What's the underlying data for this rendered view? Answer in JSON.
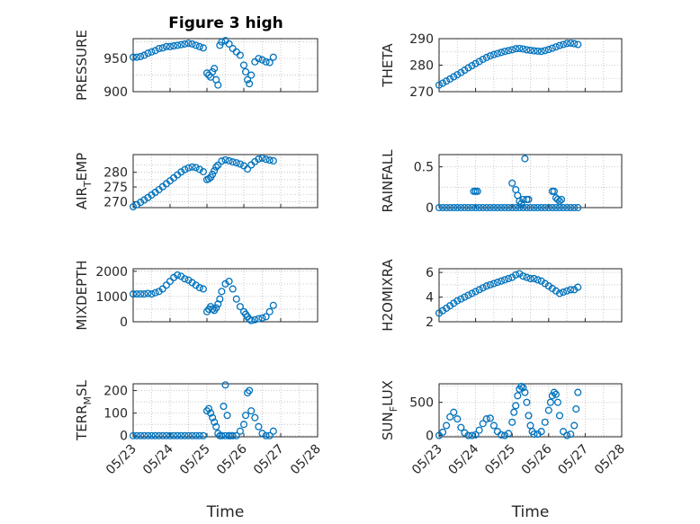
{
  "figure_title": "Figure 3 high",
  "colors": {
    "series": "#0072bd",
    "axis": "#262626",
    "grid": "#bdbdbd",
    "background": "#ffffff"
  },
  "chart_data": [
    {
      "type": "scatter",
      "ylabel": "PRESSURE",
      "ylabel_sub": "",
      "ylabel_tail": "",
      "xlabel": "",
      "title": "Figure 3 high",
      "xlim": [
        "05/23",
        "05/25"
      ],
      "ylim": [
        900,
        980
      ],
      "yticks": [
        "900",
        "950"
      ],
      "ytick_values": [
        900,
        950
      ],
      "grid": true,
      "x": [
        0.0,
        0.1,
        0.2,
        0.3,
        0.4,
        0.5,
        0.6,
        0.7,
        0.8,
        0.9,
        1.0,
        1.1,
        1.2,
        1.3,
        1.4,
        1.5,
        1.6,
        1.7,
        1.8,
        1.9,
        2.0,
        2.05,
        2.1,
        2.15,
        2.2,
        2.25,
        2.3,
        2.35,
        2.4,
        2.5,
        2.6,
        2.7,
        2.8,
        2.9,
        3.0,
        3.05,
        3.1,
        3.15,
        3.2,
        3.3,
        3.4,
        3.5,
        3.6,
        3.7,
        3.8
      ],
      "y": [
        952,
        952,
        953,
        955,
        958,
        960,
        962,
        965,
        966,
        968,
        968,
        969,
        970,
        971,
        972,
        973,
        972,
        970,
        968,
        966,
        928,
        925,
        922,
        930,
        935,
        918,
        910,
        970,
        975,
        977,
        972,
        965,
        960,
        955,
        940,
        930,
        918,
        912,
        925,
        945,
        950,
        948,
        945,
        944,
        952
      ]
    },
    {
      "type": "scatter",
      "ylabel": "THETA",
      "ylabel_sub": "",
      "ylabel_tail": "",
      "xlabel": "",
      "title": "",
      "xlim": [
        "05/23",
        "05/25"
      ],
      "ylim": [
        270,
        290
      ],
      "yticks": [
        "270",
        "280",
        "290"
      ],
      "ytick_values": [
        270,
        280,
        290
      ],
      "grid": true,
      "x": [
        0.0,
        0.1,
        0.2,
        0.3,
        0.4,
        0.5,
        0.6,
        0.7,
        0.8,
        0.9,
        1.0,
        1.1,
        1.2,
        1.3,
        1.4,
        1.5,
        1.6,
        1.7,
        1.8,
        1.9,
        2.0,
        2.1,
        2.2,
        2.3,
        2.4,
        2.5,
        2.6,
        2.7,
        2.8,
        2.9,
        3.0,
        3.1,
        3.2,
        3.3,
        3.4,
        3.5,
        3.6,
        3.7,
        3.8
      ],
      "y": [
        272.5,
        273.2,
        274,
        274.8,
        275.6,
        276.4,
        277.2,
        278.1,
        279,
        279.8,
        280.6,
        281.4,
        282.2,
        282.9,
        283.5,
        284,
        284.4,
        284.8,
        285.2,
        285.5,
        285.8,
        286.2,
        286.3,
        286.1,
        285.8,
        285.6,
        285.4,
        285.3,
        285.2,
        285.5,
        285.9,
        286.4,
        286.9,
        287.4,
        287.8,
        288.2,
        288.3,
        288.1,
        287.8
      ]
    },
    {
      "type": "scatter",
      "ylabel": "AIR",
      "ylabel_sub": "T",
      "ylabel_tail": "EMP",
      "xlabel": "",
      "title": "",
      "xlim": [
        "05/23",
        "05/25"
      ],
      "ylim": [
        268,
        286
      ],
      "yticks": [
        "270",
        "275",
        "280"
      ],
      "ytick_values": [
        270,
        275,
        280
      ],
      "grid": true,
      "x": [
        0.0,
        0.1,
        0.2,
        0.3,
        0.4,
        0.5,
        0.6,
        0.7,
        0.8,
        0.9,
        1.0,
        1.1,
        1.2,
        1.3,
        1.4,
        1.5,
        1.6,
        1.7,
        1.8,
        1.9,
        2.0,
        2.05,
        2.1,
        2.15,
        2.2,
        2.25,
        2.3,
        2.4,
        2.5,
        2.6,
        2.7,
        2.8,
        2.9,
        3.0,
        3.1,
        3.2,
        3.3,
        3.4,
        3.5,
        3.6,
        3.7,
        3.8
      ],
      "y": [
        268.3,
        269,
        269.8,
        270.6,
        271.4,
        272.3,
        273.2,
        274.1,
        275.1,
        276.1,
        277.1,
        278.1,
        279.1,
        280.1,
        280.9,
        281.5,
        281.8,
        281.6,
        281,
        280.2,
        277.5,
        277.8,
        278.3,
        279.3,
        280.5,
        281.8,
        282.4,
        283.8,
        284.2,
        283.9,
        283.5,
        283.2,
        282.8,
        282.2,
        281.1,
        282.5,
        283.6,
        284.5,
        284.8,
        284.4,
        284.1,
        283.9
      ]
    },
    {
      "type": "scatter",
      "ylabel": "RAINFALL",
      "ylabel_sub": "",
      "ylabel_tail": "",
      "xlabel": "",
      "title": "",
      "xlim": [
        "05/23",
        "05/25"
      ],
      "ylim": [
        0,
        0.65
      ],
      "yticks": [
        "0",
        "0.5"
      ],
      "ytick_values": [
        0,
        0.5
      ],
      "grid": true,
      "x": [
        0.0,
        0.1,
        0.2,
        0.3,
        0.4,
        0.5,
        0.6,
        0.7,
        0.8,
        0.9,
        1.0,
        1.1,
        1.2,
        1.3,
        1.4,
        1.5,
        1.6,
        1.7,
        1.8,
        1.9,
        2.0,
        2.1,
        2.2,
        2.3,
        2.4,
        2.5,
        2.6,
        2.7,
        2.8,
        2.9,
        3.0,
        3.1,
        3.2,
        3.3,
        3.4,
        3.5,
        3.6,
        3.7,
        3.8,
        0.95,
        1.0,
        1.05,
        2.0,
        2.1,
        2.15,
        2.2,
        2.25,
        2.3,
        2.35,
        2.4,
        2.45,
        3.1,
        3.15,
        3.2,
        3.25,
        3.3,
        3.35
      ],
      "y": [
        0,
        0,
        0,
        0,
        0,
        0,
        0,
        0,
        0,
        0,
        0,
        0,
        0,
        0,
        0,
        0,
        0,
        0,
        0,
        0,
        0,
        0,
        0,
        0,
        0,
        0,
        0,
        0,
        0,
        0,
        0,
        0,
        0,
        0,
        0,
        0,
        0,
        0,
        0,
        0.2,
        0.2,
        0.2,
        0.3,
        0.22,
        0.15,
        0.08,
        0.05,
        0.1,
        0.6,
        0.1,
        0.1,
        0.2,
        0.2,
        0.12,
        0.1,
        0.08,
        0.1
      ]
    },
    {
      "type": "scatter",
      "ylabel": "MIXDEPTH",
      "ylabel_sub": "",
      "ylabel_tail": "",
      "xlabel": "",
      "title": "",
      "xlim": [
        "05/23",
        "05/25"
      ],
      "ylim": [
        0,
        2100
      ],
      "yticks": [
        "0",
        "1000",
        "2000"
      ],
      "ytick_values": [
        0,
        1000,
        2000
      ],
      "grid": true,
      "x": [
        0.0,
        0.1,
        0.2,
        0.3,
        0.4,
        0.5,
        0.6,
        0.7,
        0.8,
        0.9,
        1.0,
        1.1,
        1.2,
        1.3,
        1.4,
        1.5,
        1.6,
        1.7,
        1.8,
        1.9,
        2.0,
        2.05,
        2.1,
        2.15,
        2.2,
        2.25,
        2.3,
        2.35,
        2.4,
        2.5,
        2.6,
        2.7,
        2.8,
        2.9,
        3.0,
        3.05,
        3.1,
        3.15,
        3.2,
        3.3,
        3.4,
        3.5,
        3.6,
        3.7,
        3.8
      ],
      "y": [
        1100,
        1100,
        1100,
        1100,
        1120,
        1100,
        1150,
        1200,
        1300,
        1450,
        1600,
        1750,
        1850,
        1800,
        1700,
        1650,
        1550,
        1450,
        1350,
        1300,
        400,
        500,
        600,
        500,
        450,
        550,
        700,
        900,
        1200,
        1500,
        1600,
        1300,
        900,
        600,
        400,
        300,
        200,
        100,
        50,
        80,
        120,
        150,
        200,
        400,
        650
      ]
    },
    {
      "type": "scatter",
      "ylabel": "H2OMIXRA",
      "ylabel_sub": "",
      "ylabel_tail": "",
      "xlabel": "",
      "title": "",
      "xlim": [
        "05/23",
        "05/25"
      ],
      "ylim": [
        2,
        6.3
      ],
      "yticks": [
        "2",
        "4",
        "6"
      ],
      "ytick_values": [
        2,
        4,
        6
      ],
      "grid": true,
      "x": [
        0.0,
        0.1,
        0.2,
        0.3,
        0.4,
        0.5,
        0.6,
        0.7,
        0.8,
        0.9,
        1.0,
        1.1,
        1.2,
        1.3,
        1.4,
        1.5,
        1.6,
        1.7,
        1.8,
        1.9,
        2.0,
        2.1,
        2.2,
        2.3,
        2.4,
        2.5,
        2.6,
        2.7,
        2.8,
        2.9,
        3.0,
        3.1,
        3.2,
        3.3,
        3.4,
        3.5,
        3.6,
        3.7,
        3.8
      ],
      "y": [
        2.7,
        2.9,
        3.1,
        3.3,
        3.5,
        3.7,
        3.85,
        4.0,
        4.15,
        4.3,
        4.45,
        4.6,
        4.75,
        4.9,
        5.0,
        5.1,
        5.2,
        5.3,
        5.4,
        5.5,
        5.6,
        5.8,
        5.9,
        5.7,
        5.6,
        5.5,
        5.5,
        5.4,
        5.3,
        5.1,
        4.9,
        4.7,
        4.5,
        4.3,
        4.4,
        4.5,
        4.6,
        4.6,
        4.8
      ]
    },
    {
      "type": "scatter",
      "ylabel": "TERR",
      "ylabel_sub": "M",
      "ylabel_tail": "SL",
      "xlabel": "Time",
      "title": "",
      "xlim": [
        "05/23",
        "05/28"
      ],
      "ylim": [
        -5,
        230
      ],
      "yticks": [
        "0",
        "100",
        "200"
      ],
      "ytick_values": [
        0,
        100,
        200
      ],
      "xticks": [
        "05/23",
        "05/24",
        "05/25",
        "05/26",
        "05/27",
        "05/28"
      ],
      "grid": true,
      "x": [
        0.0,
        0.1,
        0.2,
        0.3,
        0.4,
        0.5,
        0.6,
        0.7,
        0.8,
        0.9,
        1.0,
        1.1,
        1.2,
        1.3,
        1.4,
        1.5,
        1.6,
        1.7,
        1.8,
        1.9,
        2.0,
        2.05,
        2.1,
        2.15,
        2.2,
        2.25,
        2.3,
        2.35,
        2.4,
        2.5,
        2.6,
        2.7,
        2.8,
        2.9,
        3.0,
        3.05,
        3.1,
        3.15,
        3.2,
        3.3,
        3.4,
        3.5,
        3.6,
        3.7,
        3.8,
        2.45,
        2.5,
        2.55,
        2.6,
        2.65
      ],
      "y": [
        0,
        0,
        0,
        0,
        0,
        0,
        0,
        0,
        0,
        0,
        0,
        0,
        0,
        0,
        0,
        0,
        0,
        0,
        0,
        0,
        110,
        120,
        100,
        80,
        60,
        40,
        10,
        0,
        0,
        0,
        0,
        0,
        0,
        20,
        50,
        90,
        190,
        200,
        110,
        80,
        40,
        10,
        0,
        0,
        20,
        130,
        225,
        90,
        0,
        0
      ]
    },
    {
      "type": "scatter",
      "ylabel": "SUN",
      "ylabel_sub": "F",
      "ylabel_tail": "LUX",
      "xlabel": "Time",
      "title": "",
      "xlim": [
        "05/23",
        "05/28"
      ],
      "ylim": [
        -20,
        780
      ],
      "yticks": [
        "0",
        "500"
      ],
      "ytick_values": [
        0,
        500
      ],
      "xticks": [
        "05/23",
        "05/24",
        "05/25",
        "05/26",
        "05/27",
        "05/28"
      ],
      "grid": true,
      "x": [
        0.0,
        0.1,
        0.2,
        0.3,
        0.4,
        0.5,
        0.6,
        0.7,
        0.8,
        0.9,
        1.0,
        1.1,
        1.2,
        1.3,
        1.4,
        1.5,
        1.6,
        1.7,
        1.8,
        1.9,
        2.0,
        2.05,
        2.1,
        2.15,
        2.2,
        2.25,
        2.3,
        2.35,
        2.4,
        2.45,
        2.5,
        2.55,
        2.6,
        2.7,
        2.8,
        2.9,
        3.0,
        3.05,
        3.1,
        3.15,
        3.2,
        3.25,
        3.3,
        3.4,
        3.5,
        3.6,
        3.7,
        3.75,
        3.8
      ],
      "y": [
        0,
        50,
        150,
        280,
        350,
        250,
        120,
        40,
        0,
        0,
        10,
        80,
        180,
        250,
        260,
        150,
        60,
        10,
        0,
        30,
        200,
        350,
        450,
        600,
        700,
        740,
        720,
        650,
        500,
        300,
        150,
        60,
        20,
        20,
        60,
        200,
        380,
        500,
        600,
        650,
        620,
        500,
        300,
        60,
        0,
        20,
        150,
        400,
        650
      ]
    }
  ]
}
